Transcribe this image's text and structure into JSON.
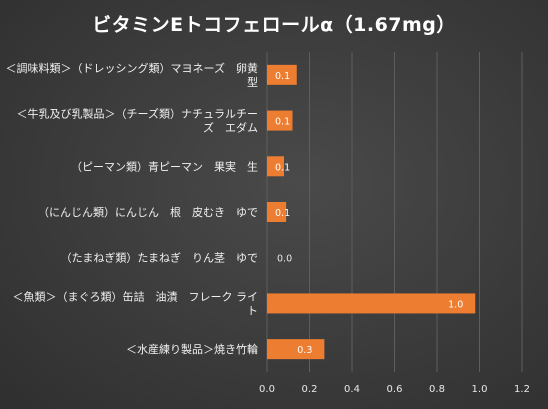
{
  "chart_data": {
    "type": "bar",
    "orientation": "horizontal",
    "title": "ビタミンEトコフェロールα（1.67mg）",
    "categories": [
      [
        "＜調味料類＞（ドレッシング類）マヨネーズ　卵黄",
        "型"
      ],
      [
        "＜牛乳及び乳製品＞（チーズ類）ナチュラルチー",
        "ズ　エダム"
      ],
      [
        "（ピーマン類）青ピーマン　果実　生"
      ],
      [
        "（にんじん類）にんじん　根　皮むき　ゆで"
      ],
      [
        "（たまねぎ類）たまねぎ　りん茎　ゆで"
      ],
      [
        "＜魚類＞（まぐろ類）缶詰　油漬　フレーク ライ",
        "ト"
      ],
      [
        "＜水産練り製品＞焼き竹輪"
      ]
    ],
    "values": [
      0.14,
      0.12,
      0.08,
      0.09,
      0.0,
      0.98,
      0.27
    ],
    "data_labels": [
      "0.1",
      "0.1",
      "0.1",
      "0.1",
      "0.0",
      "1.0",
      "0.3"
    ],
    "x_ticks": [
      "0.0",
      "0.2",
      "0.4",
      "0.6",
      "0.8",
      "1.0",
      "1.2"
    ],
    "xlim": [
      0,
      1.2
    ],
    "grid": true,
    "legend": "none",
    "bar_color": "#ed7d31"
  }
}
